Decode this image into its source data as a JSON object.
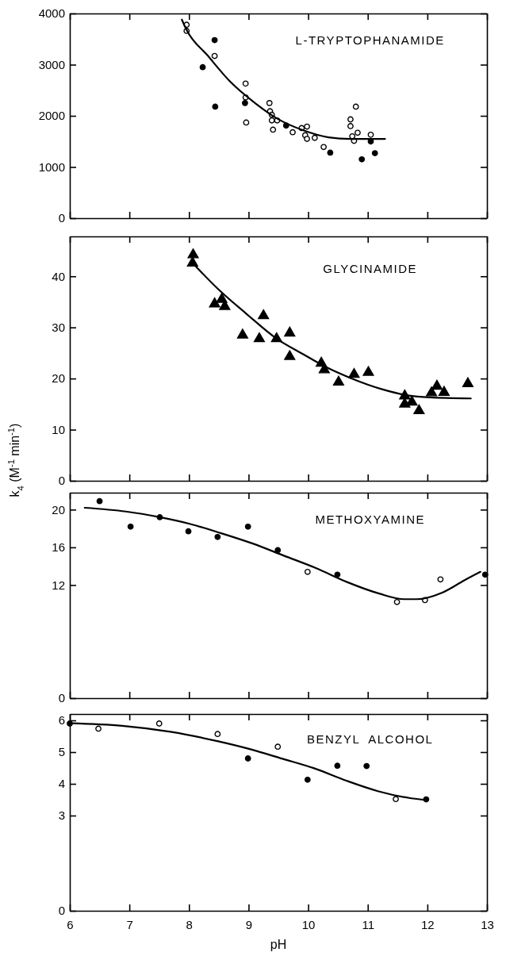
{
  "chart_data": [
    {
      "type": "scatter",
      "annotations": [
        "L-TRYPTOPHANAMIDE"
      ],
      "xlim": [
        6,
        13
      ],
      "xticks": [
        6,
        7,
        8,
        9,
        10,
        11,
        12,
        13
      ],
      "ylim": [
        0,
        4000
      ],
      "yticks": [
        0,
        1000,
        2000,
        3000,
        4000
      ],
      "tick_labels": "y",
      "grid": false,
      "series": [
        {
          "type": "scatter",
          "marker": "circle",
          "color": "#ffffff",
          "x": [
            7.96,
            7.96,
            8.43,
            8.95,
            8.95,
            8.96,
            9.35,
            9.36,
            9.39,
            9.39,
            9.48,
            9.41,
            9.74,
            9.89,
            9.98,
            9.95,
            9.98,
            10.11,
            10.26,
            10.71,
            10.71,
            10.8,
            10.74,
            10.77,
            10.83,
            11.05
          ],
          "values": [
            3780,
            3660,
            3170,
            2630,
            2360,
            1870,
            2250,
            2090,
            2020,
            1910,
            1910,
            1730,
            1680,
            1760,
            1790,
            1620,
            1550,
            1570,
            1390,
            1930,
            1800,
            2180,
            1600,
            1510,
            1670,
            1630
          ]
        },
        {
          "type": "scatter",
          "marker": "circle",
          "color": "#000000",
          "x": [
            8.43,
            8.23,
            8.44,
            8.94,
            9.63,
            10.37,
            10.9,
            11.05,
            11.12
          ],
          "values": [
            3480,
            2950,
            2180,
            2250,
            1810,
            1280,
            1150,
            1500,
            1270
          ]
        },
        {
          "type": "line",
          "marker": "none",
          "color": "#000000",
          "x": [
            7.88,
            7.96,
            8.32,
            8.69,
            9.12,
            9.49,
            9.91,
            10.34,
            10.71,
            11.29
          ],
          "values": [
            3880,
            3680,
            3170,
            2670,
            2240,
            1940,
            1720,
            1580,
            1550,
            1550
          ]
        }
      ]
    },
    {
      "type": "scatter",
      "annotations": [
        "GLYCINAMIDE"
      ],
      "ylabel": "k$_{4}$ (M$^{-1}$ min$^{-1}$)",
      "xlim": [
        6,
        13
      ],
      "xticks": [
        6,
        7,
        8,
        9,
        10,
        11,
        12,
        13
      ],
      "ylim": [
        0,
        47.8
      ],
      "yticks": [
        0,
        10,
        20,
        30,
        40
      ],
      "tick_labels": "y",
      "grid": false,
      "series": [
        {
          "type": "scatter",
          "marker": "triangle",
          "color": "#000000",
          "x": [
            8.07,
            8.06,
            8.43,
            8.55,
            8.6,
            8.9,
            9.18,
            9.25,
            9.47,
            9.69,
            9.69,
            10.22,
            10.27,
            10.51,
            10.77,
            11.01,
            11.62,
            11.62,
            11.74,
            11.86,
            12.07,
            12.16,
            12.28,
            12.68
          ],
          "values": [
            44.2,
            42.6,
            34.6,
            35.5,
            34.1,
            28.5,
            27.8,
            32.3,
            27.8,
            28.9,
            24.3,
            23.0,
            21.7,
            19.3,
            20.8,
            21.2,
            16.6,
            15.0,
            15.4,
            13.7,
            17.2,
            18.5,
            17.3,
            19.0
          ]
        },
        {
          "type": "line",
          "marker": "none",
          "color": "#000000",
          "x": [
            8.06,
            8.48,
            8.96,
            9.47,
            9.91,
            10.29,
            10.71,
            11.24,
            11.67,
            12.04,
            12.73
          ],
          "values": [
            42.6,
            37.6,
            32.7,
            27.8,
            24.8,
            22.3,
            20.1,
            17.9,
            16.7,
            16.3,
            16.1
          ]
        }
      ]
    },
    {
      "type": "scatter",
      "annotations": [
        "METHOXYAMINE"
      ],
      "xlim": [
        6,
        13
      ],
      "xticks": [
        6,
        7,
        8,
        9,
        10,
        11,
        12,
        13
      ],
      "ylim": [
        0,
        21.8
      ],
      "yticks": [
        0,
        12,
        16,
        20
      ],
      "tick_labels": "y",
      "grid": false,
      "series": [
        {
          "type": "scatter",
          "marker": "circle",
          "color": "#000000",
          "x": [
            6.5,
            7.02,
            7.51,
            7.99,
            8.48,
            8.99,
            9.49,
            10.49,
            12.97
          ],
          "values": [
            20.9,
            18.2,
            19.2,
            17.7,
            17.1,
            18.2,
            15.7,
            13.1,
            13.1
          ]
        },
        {
          "type": "scatter",
          "marker": "circle",
          "color": "#ffffff",
          "x": [
            9.99,
            11.49,
            11.96,
            12.22
          ],
          "values": [
            13.4,
            10.2,
            10.4,
            12.6
          ]
        },
        {
          "type": "line",
          "marker": "none",
          "color": "#000000",
          "x": [
            6.25,
            6.94,
            7.51,
            8.01,
            8.54,
            9.07,
            9.6,
            10.13,
            10.66,
            11.19,
            11.61,
            11.82,
            12.25,
            12.62,
            12.89
          ],
          "values": [
            20.2,
            19.8,
            19.2,
            18.5,
            17.5,
            16.4,
            15.1,
            13.8,
            12.3,
            11.1,
            10.5,
            10.5,
            11.2,
            12.5,
            13.4
          ]
        }
      ]
    },
    {
      "type": "scatter",
      "annotations": [
        "BENZYL  ALCOHOL"
      ],
      "xlabel": "pH",
      "xlim": [
        6,
        13
      ],
      "xticks": [
        6,
        7,
        8,
        9,
        10,
        11,
        12,
        13
      ],
      "ylim": [
        0,
        6.2
      ],
      "yticks": [
        0,
        3,
        4,
        5,
        6
      ],
      "grid": false,
      "series": [
        {
          "type": "scatter",
          "marker": "circle",
          "color": "#000000",
          "x": [
            6.0,
            8.99,
            9.99,
            10.49,
            10.98,
            11.98
          ],
          "values": [
            5.9,
            4.8,
            4.13,
            4.57,
            4.56,
            3.51
          ]
        },
        {
          "type": "scatter",
          "marker": "circle",
          "color": "#ffffff",
          "x": [
            6.48,
            7.5,
            8.48,
            9.49,
            11.47
          ],
          "values": [
            5.74,
            5.9,
            5.57,
            5.17,
            3.52
          ]
        },
        {
          "type": "line",
          "marker": "none",
          "color": "#000000",
          "x": [
            6.0,
            6.88,
            7.69,
            8.49,
            9.03,
            9.57,
            10.1,
            10.64,
            11.17,
            11.71,
            11.98
          ],
          "values": [
            5.91,
            5.83,
            5.64,
            5.34,
            5.09,
            4.79,
            4.49,
            4.1,
            3.77,
            3.55,
            3.49
          ]
        }
      ]
    }
  ]
}
